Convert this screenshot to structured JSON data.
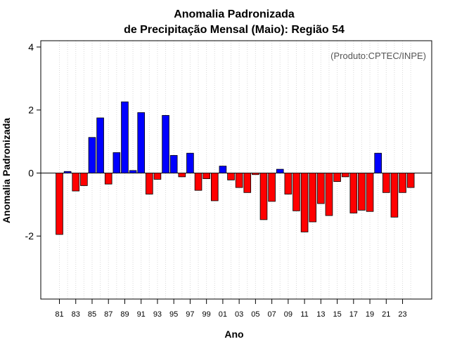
{
  "chart_data": {
    "type": "bar",
    "title": "Anomalia Padronizada",
    "subtitle": "de Precipitação Mensal (Maio): Região 54",
    "xlabel": "Ano",
    "ylabel": "Anomalia Padronizada",
    "annotation": "(Produto:CPTEC/INPE)",
    "ylim": [
      -4,
      4.2
    ],
    "yticks": [
      -2,
      0,
      2,
      4
    ],
    "grid": "vertical-dotted",
    "positive_color": "#0000ff",
    "negative_color": "#ff0000",
    "categories": [
      "81",
      "82",
      "83",
      "84",
      "85",
      "86",
      "87",
      "88",
      "89",
      "90",
      "91",
      "92",
      "93",
      "94",
      "95",
      "96",
      "97",
      "98",
      "99",
      "00",
      "01",
      "02",
      "03",
      "04",
      "05",
      "06",
      "07",
      "08",
      "09",
      "10",
      "11",
      "12",
      "13",
      "14",
      "15",
      "16",
      "17",
      "18",
      "19",
      "20",
      "21",
      "22",
      "23",
      "24"
    ],
    "tick_labels": [
      "81",
      "83",
      "85",
      "87",
      "89",
      "91",
      "93",
      "95",
      "97",
      "99",
      "01",
      "03",
      "05",
      "07",
      "09",
      "11",
      "13",
      "15",
      "17",
      "19",
      "21",
      "23"
    ],
    "values": [
      -1.95,
      0.05,
      -0.57,
      -0.4,
      1.13,
      1.75,
      -0.35,
      0.65,
      2.26,
      0.08,
      1.92,
      -0.67,
      -0.2,
      1.83,
      0.56,
      -0.12,
      0.63,
      -0.55,
      -0.18,
      -0.88,
      0.22,
      -0.22,
      -0.46,
      -0.62,
      -0.05,
      -1.48,
      -0.9,
      0.12,
      -0.67,
      -1.2,
      -1.87,
      -1.55,
      -0.97,
      -1.35,
      -0.27,
      -0.12,
      -1.27,
      -1.18,
      -1.22,
      0.63,
      -0.62,
      -1.4,
      -0.62,
      -0.46
    ]
  }
}
